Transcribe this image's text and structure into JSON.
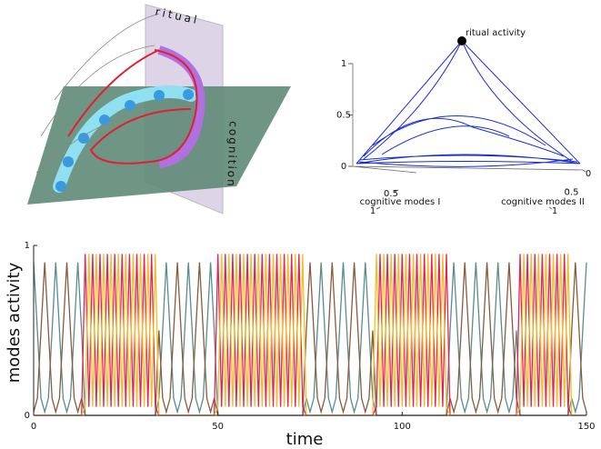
{
  "diagram": {
    "labels": [
      "ritual",
      "cognition"
    ]
  },
  "chart_data": [
    {
      "type": "line",
      "xlabel": "time",
      "ylabel": "modes activity",
      "xlim": [
        0,
        150
      ],
      "ylim": [
        0,
        1
      ],
      "xticks": [
        0,
        50,
        100,
        150
      ],
      "yticks": [
        0,
        1
      ],
      "x": [
        0,
        1,
        2,
        3,
        4,
        5,
        6,
        7,
        8,
        9,
        10,
        11,
        12,
        13,
        14,
        15,
        16,
        17,
        18,
        19,
        20,
        21,
        22,
        23,
        24,
        25,
        26,
        27,
        28,
        29,
        30,
        31,
        32,
        33,
        34,
        35,
        36,
        37,
        38,
        39,
        40,
        41,
        42,
        43,
        44,
        45,
        46,
        47,
        48,
        49,
        50,
        51,
        52,
        53,
        54,
        55,
        56,
        57,
        58,
        59,
        60,
        61,
        62,
        63,
        64,
        65,
        66,
        67,
        68,
        69,
        70,
        71,
        72,
        73,
        74,
        75,
        76,
        77,
        78,
        79,
        80,
        81,
        82,
        83,
        84,
        85,
        86,
        87,
        88,
        89,
        90,
        91,
        92,
        93,
        94,
        95,
        96,
        97,
        98,
        99,
        100,
        101,
        102,
        103,
        104,
        105,
        106,
        107,
        108,
        109,
        110,
        111,
        112,
        113,
        114,
        115,
        116,
        117,
        118,
        119,
        120,
        121,
        122,
        123,
        124,
        125,
        126,
        127,
        128,
        129,
        130,
        131,
        132,
        133,
        134,
        135,
        136,
        137,
        138,
        139,
        140,
        141,
        142,
        143,
        144,
        145,
        146,
        147,
        148,
        149,
        150
      ],
      "series": [
        {
          "color": "#5a8c8c",
          "values": [
            0.9,
            0.5,
            0.1,
            0.02,
            0.1,
            0.5,
            0.9,
            0.5,
            0.1,
            0.02,
            0.1,
            0.5,
            0.9,
            0.5,
            0,
            0,
            0,
            0,
            0,
            0,
            0,
            0,
            0,
            0,
            0,
            0,
            0,
            0,
            0,
            0,
            0,
            0,
            0,
            0,
            0.1,
            0.5,
            0.9,
            0.5,
            0.1,
            0.02,
            0.1,
            0.5,
            0.9,
            0.5,
            0.1,
            0.02,
            0.1,
            0.5,
            0.9,
            0.5,
            0,
            0,
            0,
            0,
            0,
            0,
            0,
            0,
            0,
            0,
            0,
            0,
            0,
            0,
            0,
            0,
            0,
            0,
            0,
            0,
            0,
            0,
            0,
            0,
            0.1,
            0.02,
            0.1,
            0.5,
            0.9,
            0.5,
            0.1,
            0.02,
            0.1,
            0.5,
            0.9,
            0.5,
            0.1,
            0.02,
            0.1,
            0.5,
            0.9,
            0.5,
            0.1,
            0,
            0,
            0,
            0,
            0,
            0,
            0,
            0,
            0,
            0,
            0,
            0,
            0,
            0,
            0,
            0,
            0,
            0,
            0,
            0,
            0.5,
            0.9,
            0.5,
            0.1,
            0.02,
            0.1,
            0.5,
            0.9,
            0.5,
            0.1,
            0.02,
            0.1,
            0.5,
            0.9,
            0.5,
            0.1,
            0.02,
            0.1,
            0.5,
            0,
            0,
            0,
            0,
            0,
            0,
            0,
            0,
            0,
            0,
            0,
            0,
            0,
            0,
            0.1,
            0.02,
            0.1,
            0.5,
            0.9
          ]
        },
        {
          "color": "#8a5a3c",
          "values": [
            0.02,
            0.1,
            0.5,
            0.9,
            0.5,
            0.1,
            0.02,
            0.1,
            0.5,
            0.9,
            0.5,
            0.1,
            0.02,
            0.1,
            0,
            0,
            0,
            0,
            0,
            0,
            0,
            0,
            0,
            0,
            0,
            0,
            0,
            0,
            0,
            0,
            0,
            0,
            0,
            0,
            0.5,
            0.1,
            0.02,
            0.1,
            0.5,
            0.9,
            0.5,
            0.1,
            0.02,
            0.1,
            0.5,
            0.9,
            0.5,
            0.1,
            0.02,
            0.1,
            0,
            0,
            0,
            0,
            0,
            0,
            0,
            0,
            0,
            0,
            0,
            0,
            0,
            0,
            0,
            0,
            0,
            0,
            0,
            0,
            0,
            0,
            0,
            0,
            0.5,
            0.9,
            0.5,
            0.1,
            0.02,
            0.1,
            0.5,
            0.9,
            0.5,
            0.1,
            0.02,
            0.1,
            0.5,
            0.9,
            0.5,
            0.1,
            0.02,
            0.1,
            0.5,
            0,
            0,
            0,
            0,
            0,
            0,
            0,
            0,
            0,
            0,
            0,
            0,
            0,
            0,
            0,
            0,
            0,
            0,
            0,
            0,
            0.1,
            0.02,
            0.1,
            0.5,
            0.9,
            0.5,
            0.1,
            0.02,
            0.1,
            0.5,
            0.9,
            0.5,
            0.1,
            0.02,
            0.1,
            0.5,
            0.9,
            0.5,
            0.1,
            0,
            0,
            0,
            0,
            0,
            0,
            0,
            0,
            0,
            0,
            0,
            0,
            0,
            0,
            0.5,
            0.9,
            0.5,
            0.1,
            0.02
          ]
        },
        {
          "color": "#e8205a",
          "values": [
            0,
            0,
            0,
            0,
            0,
            0,
            0,
            0,
            0,
            0,
            0,
            0,
            0,
            0,
            0.95,
            0.05,
            0.95,
            0.05,
            0.95,
            0.05,
            0.95,
            0.05,
            0.95,
            0.05,
            0.95,
            0.05,
            0.95,
            0.05,
            0.95,
            0.05,
            0.95,
            0.05,
            0.95,
            0.05,
            0,
            0,
            0,
            0,
            0,
            0,
            0,
            0,
            0,
            0,
            0,
            0,
            0,
            0,
            0,
            0,
            0.95,
            0.05,
            0.95,
            0.05,
            0.95,
            0.05,
            0.95,
            0.05,
            0.95,
            0.05,
            0.95,
            0.05,
            0.95,
            0.05,
            0.95,
            0.05,
            0.95,
            0.05,
            0.95,
            0.05,
            0.95,
            0.05,
            0.95,
            0.05,
            0,
            0,
            0,
            0,
            0,
            0,
            0,
            0,
            0,
            0,
            0,
            0,
            0,
            0,
            0,
            0,
            0,
            0,
            0,
            0.05,
            0.95,
            0.05,
            0.95,
            0.05,
            0.95,
            0.05,
            0.95,
            0.05,
            0.95,
            0.05,
            0.95,
            0.05,
            0.95,
            0.05,
            0.95,
            0.05,
            0.95,
            0.05,
            0.95,
            0,
            0,
            0,
            0,
            0,
            0,
            0,
            0,
            0,
            0,
            0,
            0,
            0,
            0,
            0,
            0,
            0,
            0,
            0,
            0.95,
            0.05,
            0.95,
            0.05,
            0.95,
            0.05,
            0.95,
            0.05,
            0.95,
            0.05,
            0.95,
            0.05,
            0.95,
            0.05,
            0,
            0,
            0,
            0,
            0
          ]
        },
        {
          "color": "#f0c020",
          "values": [
            0,
            0,
            0,
            0,
            0,
            0,
            0,
            0,
            0,
            0,
            0,
            0,
            0,
            0,
            0.05,
            0.95,
            0.05,
            0.95,
            0.05,
            0.95,
            0.05,
            0.95,
            0.05,
            0.95,
            0.05,
            0.95,
            0.05,
            0.95,
            0.05,
            0.95,
            0.05,
            0.95,
            0.05,
            0.95,
            0,
            0,
            0,
            0,
            0,
            0,
            0,
            0,
            0,
            0,
            0,
            0,
            0,
            0,
            0,
            0,
            0.05,
            0.95,
            0.05,
            0.95,
            0.05,
            0.95,
            0.05,
            0.95,
            0.05,
            0.95,
            0.05,
            0.95,
            0.05,
            0.95,
            0.05,
            0.95,
            0.05,
            0.95,
            0.05,
            0.95,
            0.05,
            0.95,
            0.05,
            0.95,
            0,
            0,
            0,
            0,
            0,
            0,
            0,
            0,
            0,
            0,
            0,
            0,
            0,
            0,
            0,
            0,
            0,
            0,
            0,
            0.95,
            0.05,
            0.95,
            0.05,
            0.95,
            0.05,
            0.95,
            0.05,
            0.95,
            0.05,
            0.95,
            0.05,
            0.95,
            0.05,
            0.95,
            0.05,
            0.95,
            0.05,
            0.95,
            0.05,
            0,
            0,
            0,
            0,
            0,
            0,
            0,
            0,
            0,
            0,
            0,
            0,
            0,
            0,
            0,
            0,
            0,
            0,
            0,
            0.05,
            0.95,
            0.05,
            0.95,
            0.05,
            0.95,
            0.05,
            0.95,
            0.05,
            0.95,
            0.05,
            0.95,
            0.05,
            0.95,
            0,
            0,
            0,
            0,
            0
          ]
        }
      ]
    },
    {
      "type": "ternary",
      "title": "ritual activity",
      "xlabel": "cognitive modes I",
      "ylabel": "cognitive modes II",
      "zticks": [
        0,
        0.5,
        1
      ],
      "xticks": [
        0.5,
        1
      ],
      "yticks": [
        0,
        0.5,
        1
      ]
    }
  ]
}
